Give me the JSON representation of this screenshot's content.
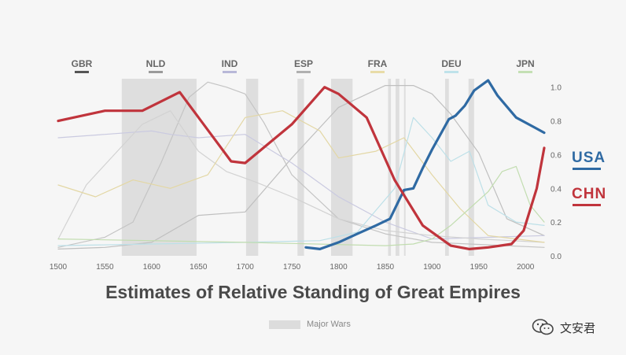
{
  "chart_data": {
    "type": "line",
    "title": "Estimates of Relative Standing of Great Empires",
    "xlim": [
      1500,
      2020
    ],
    "ylim": [
      0.0,
      1.05
    ],
    "x_ticks": [
      "1500",
      "1550",
      "1600",
      "1650",
      "1700",
      "1750",
      "1800",
      "1850",
      "1900",
      "1950",
      "2000"
    ],
    "y_ticks": [
      "0.0",
      "0.2",
      "0.4",
      "0.6",
      "0.8",
      "1.0"
    ],
    "war_periods": [
      [
        1568,
        1648
      ],
      [
        1701,
        1714
      ],
      [
        1756,
        1763
      ],
      [
        1792,
        1815
      ],
      [
        1853,
        1856
      ],
      [
        1861,
        1865
      ],
      [
        1870,
        1871
      ],
      [
        1914,
        1918
      ],
      [
        1939,
        1945
      ]
    ],
    "legend_top": [
      {
        "name": "GBR",
        "color": "#555555"
      },
      {
        "name": "NLD",
        "color": "#9a9a9a"
      },
      {
        "name": "IND",
        "color": "#b8b8d8"
      },
      {
        "name": "ESP",
        "color": "#b0b0b0"
      },
      {
        "name": "FRA",
        "color": "#e8dca8"
      },
      {
        "name": "DEU",
        "color": "#bfe3ea"
      },
      {
        "name": "JPN",
        "color": "#c4e0b4"
      }
    ],
    "series": [
      {
        "name": "USA",
        "color": "#2f6aa3",
        "highlight": true,
        "x": [
          1765,
          1780,
          1800,
          1820,
          1840,
          1855,
          1870,
          1880,
          1890,
          1900,
          1918,
          1925,
          1935,
          1945,
          1960,
          1970,
          1990,
          2010,
          2020
        ],
        "y": [
          0.05,
          0.04,
          0.08,
          0.13,
          0.18,
          0.22,
          0.39,
          0.4,
          0.52,
          0.63,
          0.81,
          0.83,
          0.89,
          0.98,
          1.04,
          0.95,
          0.82,
          0.76,
          0.73
        ]
      },
      {
        "name": "CHN",
        "color": "#c0343c",
        "highlight": true,
        "x": [
          1500,
          1550,
          1590,
          1630,
          1685,
          1700,
          1750,
          1785,
          1800,
          1830,
          1860,
          1890,
          1920,
          1940,
          1960,
          1985,
          1998,
          2012,
          2020
        ],
        "y": [
          0.8,
          0.86,
          0.86,
          0.97,
          0.56,
          0.55,
          0.78,
          1.0,
          0.96,
          0.82,
          0.45,
          0.18,
          0.06,
          0.04,
          0.05,
          0.07,
          0.15,
          0.4,
          0.64
        ]
      },
      {
        "name": "GBR",
        "color": "#bfbfbf",
        "highlight": false,
        "x": [
          1500,
          1550,
          1600,
          1650,
          1700,
          1750,
          1800,
          1850,
          1880,
          1900,
          1920,
          1950,
          1980,
          2020
        ],
        "y": [
          0.04,
          0.05,
          0.08,
          0.24,
          0.26,
          0.58,
          0.88,
          1.01,
          1.01,
          0.96,
          0.84,
          0.61,
          0.22,
          0.12
        ]
      },
      {
        "name": "NLD",
        "color": "#c4c4c4",
        "highlight": false,
        "x": [
          1500,
          1550,
          1580,
          1610,
          1640,
          1660,
          1680,
          1700,
          1720,
          1750,
          1800,
          1850,
          1900,
          2020
        ],
        "y": [
          0.05,
          0.11,
          0.2,
          0.55,
          0.94,
          1.03,
          1.0,
          0.96,
          0.79,
          0.48,
          0.22,
          0.13,
          0.08,
          0.05
        ]
      },
      {
        "name": "IND",
        "color": "#cacae0",
        "highlight": false,
        "x": [
          1500,
          1550,
          1600,
          1620,
          1650,
          1700,
          1750,
          1800,
          1850,
          1900,
          2020
        ],
        "y": [
          0.7,
          0.72,
          0.74,
          0.72,
          0.7,
          0.72,
          0.55,
          0.35,
          0.2,
          0.1,
          0.12
        ]
      },
      {
        "name": "ESP",
        "color": "#d2d2d2",
        "highlight": false,
        "x": [
          1500,
          1530,
          1560,
          1590,
          1620,
          1650,
          1680,
          1710,
          1750,
          1800,
          1850,
          1900,
          1950,
          2020
        ],
        "y": [
          0.1,
          0.42,
          0.6,
          0.78,
          0.86,
          0.62,
          0.5,
          0.44,
          0.35,
          0.22,
          0.15,
          0.12,
          0.1,
          0.08
        ]
      },
      {
        "name": "FRA",
        "color": "#e3d7a4",
        "highlight": false,
        "x": [
          1500,
          1540,
          1580,
          1620,
          1660,
          1700,
          1740,
          1780,
          1800,
          1840,
          1870,
          1900,
          1930,
          1960,
          2020
        ],
        "y": [
          0.42,
          0.35,
          0.45,
          0.4,
          0.48,
          0.82,
          0.86,
          0.74,
          0.58,
          0.62,
          0.7,
          0.48,
          0.28,
          0.12,
          0.08
        ]
      },
      {
        "name": "DEU",
        "color": "#bde0e8",
        "highlight": false,
        "x": [
          1500,
          1600,
          1700,
          1780,
          1820,
          1860,
          1880,
          1900,
          1920,
          1940,
          1960,
          1990,
          2020
        ],
        "y": [
          0.06,
          0.07,
          0.08,
          0.09,
          0.14,
          0.4,
          0.82,
          0.7,
          0.56,
          0.62,
          0.3,
          0.2,
          0.18
        ]
      },
      {
        "name": "JPN",
        "color": "#c2ddb0",
        "highlight": false,
        "x": [
          1500,
          1700,
          1850,
          1880,
          1900,
          1920,
          1940,
          1960,
          1975,
          1990,
          2005,
          2020
        ],
        "y": [
          0.1,
          0.08,
          0.06,
          0.07,
          0.1,
          0.18,
          0.28,
          0.38,
          0.5,
          0.53,
          0.3,
          0.2
        ]
      }
    ]
  },
  "wars_label": "Major Wars",
  "watermark": "文安君"
}
